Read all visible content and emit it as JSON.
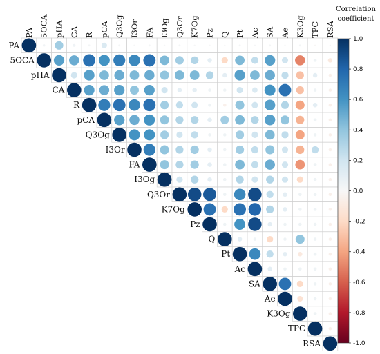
{
  "chart_data": {
    "type": "heatmap",
    "variables": [
      "PA",
      "5OCA",
      "pHA",
      "CA",
      "R",
      "pCA",
      "Q3Og",
      "I3Or",
      "FA",
      "I3Og",
      "Q3Or",
      "K7Og",
      "Pz",
      "Q",
      "Pt",
      "Ac",
      "SA",
      "Ae",
      "K3Og",
      "TPC",
      "RSA"
    ],
    "matrix": [
      [
        1.0,
        0.03,
        0.35,
        0.04,
        0.02,
        0.15,
        0.02,
        0.01,
        0.02,
        0.01,
        0.02,
        0.01,
        0.01,
        0.01,
        0.02,
        0.01,
        0.02,
        0.01,
        0.02,
        -0.01,
        0.01
      ],
      [
        0.03,
        1.0,
        0.55,
        0.5,
        0.75,
        0.6,
        0.7,
        0.65,
        0.75,
        0.45,
        0.35,
        0.3,
        0.1,
        -0.2,
        0.45,
        0.25,
        0.55,
        0.2,
        -0.5,
        0.05,
        -0.1
      ],
      [
        0.35,
        0.55,
        1.0,
        0.2,
        0.55,
        0.45,
        0.5,
        0.45,
        0.5,
        0.4,
        0.45,
        0.45,
        0.3,
        0.1,
        0.55,
        0.45,
        0.5,
        0.25,
        -0.3,
        0.1,
        -0.05
      ],
      [
        0.04,
        0.5,
        0.2,
        1.0,
        0.55,
        0.5,
        0.55,
        0.4,
        0.55,
        0.2,
        0.1,
        0.1,
        0.05,
        0.05,
        0.2,
        0.15,
        0.6,
        0.75,
        -0.3,
        0.05,
        -0.05
      ],
      [
        0.02,
        0.75,
        0.55,
        0.55,
        1.0,
        0.7,
        0.75,
        0.65,
        0.75,
        0.35,
        0.25,
        0.2,
        0.05,
        -0.05,
        0.4,
        0.2,
        0.55,
        0.3,
        -0.4,
        0.1,
        -0.05
      ],
      [
        0.15,
        0.6,
        0.45,
        0.5,
        0.7,
        1.0,
        0.55,
        0.5,
        0.6,
        0.4,
        0.3,
        0.3,
        0.1,
        0.35,
        0.45,
        0.3,
        0.55,
        0.4,
        -0.35,
        0.05,
        -0.05
      ],
      [
        0.02,
        0.7,
        0.5,
        0.55,
        0.75,
        0.55,
        1.0,
        0.6,
        0.6,
        0.35,
        0.2,
        0.25,
        0.05,
        0.05,
        0.35,
        0.2,
        0.45,
        0.25,
        -0.4,
        0.05,
        -0.05
      ],
      [
        0.01,
        0.65,
        0.45,
        0.4,
        0.65,
        0.5,
        0.6,
        1.0,
        0.7,
        0.4,
        0.3,
        0.35,
        0.1,
        0.05,
        0.35,
        0.25,
        0.4,
        0.2,
        -0.35,
        0.25,
        -0.05
      ],
      [
        0.02,
        0.75,
        0.5,
        0.55,
        0.75,
        0.6,
        0.6,
        0.7,
        1.0,
        0.4,
        0.3,
        0.35,
        0.1,
        0.05,
        0.45,
        0.25,
        0.5,
        0.2,
        -0.45,
        0.05,
        -0.05
      ],
      [
        0.01,
        0.45,
        0.4,
        0.2,
        0.35,
        0.4,
        0.35,
        0.4,
        0.4,
        1.0,
        0.2,
        0.3,
        0.1,
        0.05,
        0.3,
        0.2,
        0.3,
        0.2,
        -0.2,
        0.05,
        -0.05
      ],
      [
        0.02,
        0.35,
        0.45,
        0.1,
        0.25,
        0.3,
        0.2,
        0.3,
        0.3,
        0.2,
        1.0,
        0.9,
        0.85,
        0.05,
        0.65,
        0.9,
        0.25,
        0.1,
        0.05,
        0.05,
        -0.05
      ],
      [
        0.01,
        0.3,
        0.45,
        0.1,
        0.2,
        0.3,
        0.25,
        0.35,
        0.35,
        0.3,
        0.9,
        1.0,
        0.75,
        -0.2,
        0.75,
        0.8,
        0.3,
        0.1,
        0.05,
        0.05,
        -0.05
      ],
      [
        0.01,
        0.1,
        0.3,
        0.05,
        0.05,
        0.1,
        0.05,
        0.1,
        0.1,
        0.1,
        0.85,
        0.75,
        1.0,
        0.05,
        0.6,
        0.9,
        0.1,
        0.05,
        0.05,
        0.05,
        -0.05
      ],
      [
        0.01,
        -0.2,
        0.1,
        0.05,
        -0.05,
        0.35,
        0.05,
        0.05,
        0.05,
        0.05,
        0.05,
        -0.2,
        0.05,
        1.0,
        0.1,
        0.05,
        -0.2,
        0.05,
        0.4,
        0.05,
        -0.05
      ],
      [
        0.02,
        0.45,
        0.55,
        0.2,
        0.4,
        0.45,
        0.35,
        0.35,
        0.45,
        0.3,
        0.65,
        0.75,
        0.6,
        0.1,
        1.0,
        0.65,
        0.25,
        0.1,
        -0.1,
        0.05,
        -0.05
      ],
      [
        0.01,
        0.25,
        0.45,
        0.15,
        0.2,
        0.3,
        0.2,
        0.25,
        0.25,
        0.2,
        0.9,
        0.8,
        0.9,
        0.05,
        0.65,
        1.0,
        0.1,
        0.05,
        0.05,
        0.05,
        -0.05
      ],
      [
        0.02,
        0.55,
        0.5,
        0.6,
        0.55,
        0.55,
        0.45,
        0.4,
        0.5,
        0.3,
        0.25,
        0.3,
        0.1,
        -0.2,
        0.25,
        0.1,
        1.0,
        0.75,
        -0.2,
        0.05,
        -0.05
      ],
      [
        0.01,
        0.2,
        0.25,
        0.75,
        0.3,
        0.4,
        0.25,
        0.2,
        0.2,
        0.2,
        0.1,
        0.1,
        0.05,
        0.05,
        0.1,
        0.05,
        0.75,
        1.0,
        -0.15,
        0.05,
        -0.05
      ],
      [
        0.02,
        -0.5,
        -0.3,
        -0.3,
        -0.4,
        -0.35,
        -0.4,
        -0.35,
        -0.45,
        -0.2,
        0.05,
        0.05,
        0.05,
        0.4,
        -0.1,
        0.05,
        -0.2,
        -0.15,
        1.0,
        0.05,
        -0.05
      ],
      [
        -0.01,
        0.05,
        0.1,
        0.05,
        0.1,
        0.05,
        0.05,
        0.25,
        0.05,
        0.05,
        0.05,
        0.05,
        0.05,
        0.05,
        0.05,
        0.05,
        0.05,
        0.05,
        0.05,
        1.0,
        -0.05
      ],
      [
        0.01,
        -0.1,
        -0.05,
        -0.05,
        -0.05,
        -0.05,
        -0.05,
        -0.05,
        -0.05,
        -0.05,
        -0.05,
        -0.05,
        -0.05,
        -0.05,
        -0.05,
        -0.05,
        -0.05,
        -0.05,
        -0.05,
        -0.05,
        1.0
      ]
    ],
    "layout": "upper-triangle",
    "marker": "circle",
    "colorbar": {
      "title_lines": [
        "Correlation",
        "coefficient"
      ],
      "range": [
        -1.0,
        1.0
      ],
      "ticks": [
        "1.0",
        "0.8",
        "0.6",
        "0.4",
        "0.2",
        "0.0",
        "-0.2",
        "-0.4",
        "-0.6",
        "-0.8",
        "-1.0"
      ],
      "colormap": "RdBu"
    },
    "grid": true
  }
}
